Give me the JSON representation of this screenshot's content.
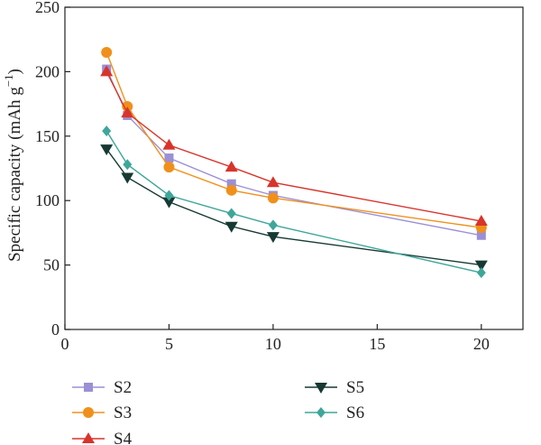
{
  "chart_data": {
    "type": "line",
    "title": "",
    "xlabel": "",
    "ylabel": "Specific capacity (mAh g",
    "ylabel_sup": "−1",
    "ylabel_close": ")",
    "xlim": [
      0,
      22
    ],
    "ylim": [
      0,
      250
    ],
    "x_ticks": [
      0,
      5,
      10,
      15,
      20
    ],
    "y_ticks": [
      0,
      50,
      100,
      150,
      200,
      250
    ],
    "grid": false,
    "legend_position": "bottom",
    "series": [
      {
        "name": "S2",
        "color": "#9b8fd6",
        "marker": "square",
        "x": [
          2,
          3,
          5,
          8,
          10,
          20
        ],
        "y": [
          202,
          166,
          133,
          113,
          104,
          73
        ]
      },
      {
        "name": "S3",
        "color": "#f0901c",
        "marker": "circle",
        "x": [
          2,
          3,
          5,
          8,
          10,
          20
        ],
        "y": [
          215,
          173,
          126,
          108,
          102,
          79
        ]
      },
      {
        "name": "S4",
        "color": "#d8342b",
        "marker": "triangle-up",
        "x": [
          2,
          3,
          5,
          8,
          10,
          20
        ],
        "y": [
          200,
          168,
          143,
          126,
          114,
          84
        ]
      },
      {
        "name": "S5",
        "color": "#163a33",
        "marker": "triangle-down",
        "x": [
          2,
          3,
          5,
          8,
          10,
          20
        ],
        "y": [
          140,
          118,
          99,
          80,
          72,
          50
        ]
      },
      {
        "name": "S6",
        "color": "#3ea69a",
        "marker": "diamond",
        "x": [
          2,
          3,
          5,
          8,
          10,
          20
        ],
        "y": [
          154,
          128,
          104,
          90,
          81,
          44
        ]
      }
    ]
  }
}
